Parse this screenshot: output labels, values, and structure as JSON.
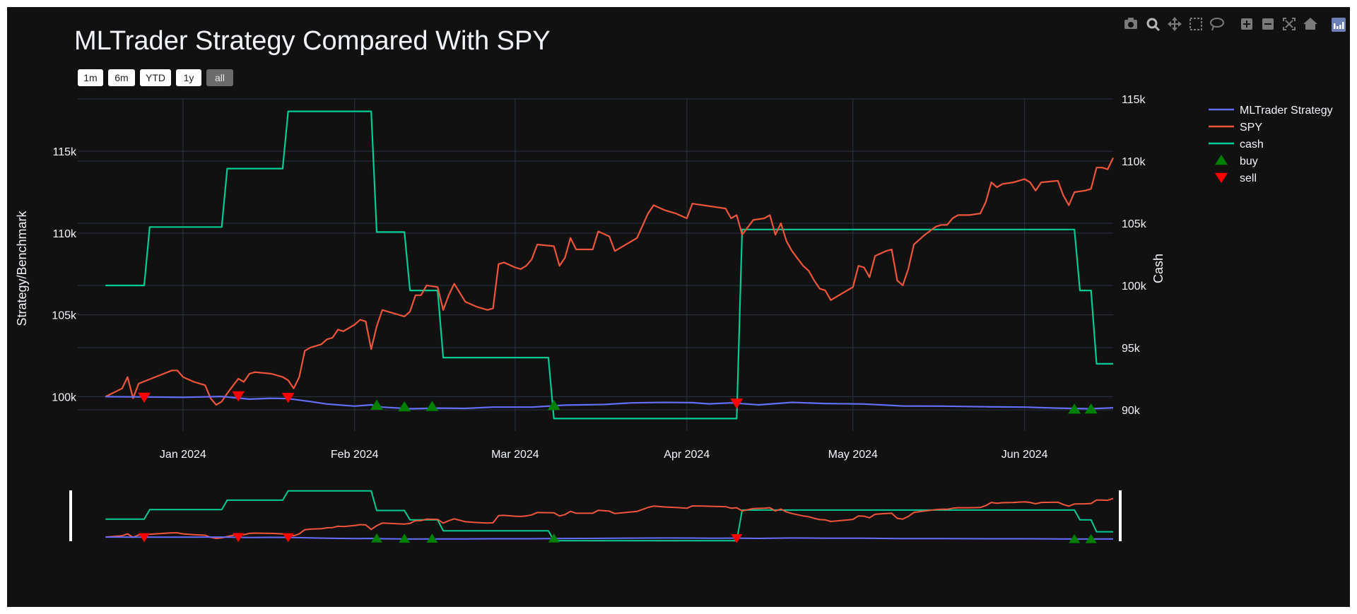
{
  "title": "MLTrader Strategy Compared With SPY",
  "range_buttons": [
    {
      "label": "1m",
      "active": false
    },
    {
      "label": "6m",
      "active": false
    },
    {
      "label": "YTD",
      "active": false
    },
    {
      "label": "1y",
      "active": false
    },
    {
      "label": "all",
      "active": true
    }
  ],
  "modebar": [
    "camera-icon",
    "zoom-icon",
    "pan-icon",
    "box-select-icon",
    "lasso-icon",
    "zoom-in-icon",
    "zoom-out-icon",
    "autoscale-icon",
    "reset-axes-icon",
    "plotly-logo-icon"
  ],
  "colors": {
    "background": "#111111",
    "grid": "#283442",
    "text": "#f2f5fa",
    "strategy": "#636efa",
    "spy": "#ef553b",
    "cash": "#00cc96",
    "buy": "#008000",
    "sell": "#ff0000"
  },
  "chart_data": {
    "type": "line",
    "title": "MLTrader Strategy Compared With SPY",
    "ylabel": "Strategy/Benchmark",
    "y2label": "Cash",
    "xlim": [
      "2023-12-13",
      "2024-06-17"
    ],
    "ylim": [
      97900,
      118200
    ],
    "y2lim": [
      88300,
      115000
    ],
    "x_ticks": [
      {
        "date": "2024-01-01",
        "label": "Jan 2024"
      },
      {
        "date": "2024-02-01",
        "label": "Feb 2024"
      },
      {
        "date": "2024-03-01",
        "label": "Mar 2024"
      },
      {
        "date": "2024-04-01",
        "label": "Apr 2024"
      },
      {
        "date": "2024-05-01",
        "label": "May 2024"
      },
      {
        "date": "2024-06-01",
        "label": "Jun 2024"
      }
    ],
    "y_ticks": [
      {
        "value": 100000,
        "label": "100k"
      },
      {
        "value": 105000,
        "label": "105k"
      },
      {
        "value": 110000,
        "label": "110k"
      },
      {
        "value": 115000,
        "label": "115k"
      }
    ],
    "y2_ticks": [
      {
        "value": 90000,
        "label": "90k"
      },
      {
        "value": 95000,
        "label": "95k"
      },
      {
        "value": 100000,
        "label": "100k"
      },
      {
        "value": 105000,
        "label": "105k"
      },
      {
        "value": 110000,
        "label": "110k"
      },
      {
        "value": 115000,
        "label": "115k"
      }
    ],
    "grid": true,
    "legend_position": "top-right",
    "series": [
      {
        "name": "MLTrader Strategy",
        "axis": "y",
        "points": [
          [
            "2023-12-18",
            100000
          ],
          [
            "2023-12-25",
            99980
          ],
          [
            "2024-01-01",
            99960
          ],
          [
            "2024-01-08",
            100010
          ],
          [
            "2024-01-13",
            99850
          ],
          [
            "2024-01-17",
            99900
          ],
          [
            "2024-01-20",
            99880
          ],
          [
            "2024-01-24",
            99700
          ],
          [
            "2024-01-27",
            99550
          ],
          [
            "2024-02-01",
            99420
          ],
          [
            "2024-02-04",
            99500
          ],
          [
            "2024-02-06",
            99360
          ],
          [
            "2024-02-11",
            99260
          ],
          [
            "2024-02-16",
            99300
          ],
          [
            "2024-02-21",
            99280
          ],
          [
            "2024-02-26",
            99360
          ],
          [
            "2024-03-04",
            99360
          ],
          [
            "2024-03-10",
            99480
          ],
          [
            "2024-03-17",
            99520
          ],
          [
            "2024-03-22",
            99620
          ],
          [
            "2024-03-28",
            99650
          ],
          [
            "2024-04-02",
            99630
          ],
          [
            "2024-04-05",
            99560
          ],
          [
            "2024-04-09",
            99620
          ],
          [
            "2024-04-14",
            99500
          ],
          [
            "2024-04-20",
            99650
          ],
          [
            "2024-04-26",
            99580
          ],
          [
            "2024-05-03",
            99550
          ],
          [
            "2024-05-10",
            99430
          ],
          [
            "2024-05-17",
            99420
          ],
          [
            "2024-05-25",
            99380
          ],
          [
            "2024-06-01",
            99360
          ],
          [
            "2024-06-07",
            99300
          ],
          [
            "2024-06-13",
            99260
          ],
          [
            "2024-06-17",
            99320
          ]
        ]
      },
      {
        "name": "SPY",
        "axis": "y",
        "points": [
          [
            "2023-12-18",
            100000
          ],
          [
            "2023-12-21",
            100500
          ],
          [
            "2023-12-22",
            101200
          ],
          [
            "2023-12-23",
            99900
          ],
          [
            "2023-12-24",
            100800
          ],
          [
            "2023-12-27",
            101200
          ],
          [
            "2023-12-30",
            101600
          ],
          [
            "2023-12-31",
            101600
          ],
          [
            "2024-01-01",
            101200
          ],
          [
            "2024-01-03",
            100900
          ],
          [
            "2024-01-05",
            100700
          ],
          [
            "2024-01-06",
            99900
          ],
          [
            "2024-01-07",
            99500
          ],
          [
            "2024-01-08",
            99700
          ],
          [
            "2024-01-09",
            100200
          ],
          [
            "2024-01-11",
            101100
          ],
          [
            "2024-01-12",
            100900
          ],
          [
            "2024-01-13",
            101400
          ],
          [
            "2024-01-14",
            101500
          ],
          [
            "2024-01-17",
            101400
          ],
          [
            "2024-01-19",
            101200
          ],
          [
            "2024-01-20",
            101000
          ],
          [
            "2024-01-21",
            100500
          ],
          [
            "2024-01-22",
            101200
          ],
          [
            "2024-01-23",
            102800
          ],
          [
            "2024-01-24",
            103000
          ],
          [
            "2024-01-26",
            103200
          ],
          [
            "2024-01-27",
            103500
          ],
          [
            "2024-01-28",
            103600
          ],
          [
            "2024-01-29",
            104100
          ],
          [
            "2024-01-30",
            104000
          ],
          [
            "2024-02-01",
            104400
          ],
          [
            "2024-02-02",
            104700
          ],
          [
            "2024-02-03",
            104600
          ],
          [
            "2024-02-04",
            102900
          ],
          [
            "2024-02-05",
            104300
          ],
          [
            "2024-02-06",
            105300
          ],
          [
            "2024-02-08",
            105100
          ],
          [
            "2024-02-10",
            104900
          ],
          [
            "2024-02-11",
            105200
          ],
          [
            "2024-02-12",
            106200
          ],
          [
            "2024-02-13",
            106200
          ],
          [
            "2024-02-14",
            106800
          ],
          [
            "2024-02-16",
            106700
          ],
          [
            "2024-02-17",
            105300
          ],
          [
            "2024-02-18",
            106200
          ],
          [
            "2024-02-19",
            106900
          ],
          [
            "2024-02-21",
            105800
          ],
          [
            "2024-02-23",
            105500
          ],
          [
            "2024-02-25",
            105300
          ],
          [
            "2024-02-26",
            105400
          ],
          [
            "2024-02-27",
            108100
          ],
          [
            "2024-02-28",
            108200
          ],
          [
            "2024-03-01",
            107900
          ],
          [
            "2024-03-02",
            107800
          ],
          [
            "2024-03-03",
            108000
          ],
          [
            "2024-03-04",
            108400
          ],
          [
            "2024-03-05",
            109300
          ],
          [
            "2024-03-08",
            109200
          ],
          [
            "2024-03-09",
            108000
          ],
          [
            "2024-03-10",
            108500
          ],
          [
            "2024-03-11",
            109700
          ],
          [
            "2024-03-12",
            109000
          ],
          [
            "2024-03-15",
            109000
          ],
          [
            "2024-03-16",
            110100
          ],
          [
            "2024-03-18",
            109800
          ],
          [
            "2024-03-19",
            108900
          ],
          [
            "2024-03-21",
            109300
          ],
          [
            "2024-03-23",
            109700
          ],
          [
            "2024-03-25",
            111200
          ],
          [
            "2024-03-26",
            111700
          ],
          [
            "2024-03-28",
            111400
          ],
          [
            "2024-03-30",
            111200
          ],
          [
            "2024-04-01",
            110900
          ],
          [
            "2024-04-02",
            111800
          ],
          [
            "2024-04-04",
            111700
          ],
          [
            "2024-04-06",
            111600
          ],
          [
            "2024-04-08",
            111500
          ],
          [
            "2024-04-09",
            110900
          ],
          [
            "2024-04-10",
            111100
          ],
          [
            "2024-04-11",
            109900
          ],
          [
            "2024-04-13",
            110800
          ],
          [
            "2024-04-15",
            110900
          ],
          [
            "2024-04-16",
            111100
          ],
          [
            "2024-04-17",
            109900
          ],
          [
            "2024-04-18",
            110600
          ],
          [
            "2024-04-19",
            109500
          ],
          [
            "2024-04-20",
            108900
          ],
          [
            "2024-04-22",
            108000
          ],
          [
            "2024-04-23",
            107700
          ],
          [
            "2024-04-24",
            107100
          ],
          [
            "2024-04-25",
            106600
          ],
          [
            "2024-04-26",
            106500
          ],
          [
            "2024-04-27",
            105900
          ],
          [
            "2024-04-29",
            106300
          ],
          [
            "2024-05-01",
            106700
          ],
          [
            "2024-05-02",
            108000
          ],
          [
            "2024-05-03",
            107900
          ],
          [
            "2024-05-04",
            107300
          ],
          [
            "2024-05-05",
            108600
          ],
          [
            "2024-05-07",
            108900
          ],
          [
            "2024-05-08",
            109000
          ],
          [
            "2024-05-09",
            107100
          ],
          [
            "2024-05-10",
            106800
          ],
          [
            "2024-05-11",
            107800
          ],
          [
            "2024-05-12",
            109300
          ],
          [
            "2024-05-14",
            109900
          ],
          [
            "2024-05-16",
            110400
          ],
          [
            "2024-05-17",
            110500
          ],
          [
            "2024-05-18",
            110500
          ],
          [
            "2024-05-19",
            110900
          ],
          [
            "2024-05-20",
            111100
          ],
          [
            "2024-05-22",
            111100
          ],
          [
            "2024-05-24",
            111200
          ],
          [
            "2024-05-25",
            111900
          ],
          [
            "2024-05-26",
            113100
          ],
          [
            "2024-05-27",
            112800
          ],
          [
            "2024-05-28",
            113000
          ],
          [
            "2024-05-30",
            113100
          ],
          [
            "2024-06-01",
            113300
          ],
          [
            "2024-06-02",
            113100
          ],
          [
            "2024-06-03",
            112600
          ],
          [
            "2024-06-04",
            113100
          ],
          [
            "2024-06-07",
            113200
          ],
          [
            "2024-06-08",
            112300
          ],
          [
            "2024-06-09",
            111700
          ],
          [
            "2024-06-10",
            112500
          ],
          [
            "2024-06-12",
            112600
          ],
          [
            "2024-06-13",
            112700
          ],
          [
            "2024-06-14",
            114000
          ],
          [
            "2024-06-15",
            114000
          ],
          [
            "2024-06-16",
            113900
          ],
          [
            "2024-06-17",
            114600
          ]
        ]
      },
      {
        "name": "cash",
        "axis": "y2",
        "points": [
          [
            "2023-12-18",
            100000
          ],
          [
            "2023-12-25",
            100000
          ],
          [
            "2023-12-26",
            104700
          ],
          [
            "2024-01-08",
            104700
          ],
          [
            "2024-01-09",
            109400
          ],
          [
            "2024-01-19",
            109400
          ],
          [
            "2024-01-20",
            114000
          ],
          [
            "2024-02-04",
            114000
          ],
          [
            "2024-02-05",
            104300
          ],
          [
            "2024-02-10",
            104300
          ],
          [
            "2024-02-11",
            99600
          ],
          [
            "2024-02-16",
            99600
          ],
          [
            "2024-02-17",
            94200
          ],
          [
            "2024-03-07",
            94200
          ],
          [
            "2024-03-08",
            89300
          ],
          [
            "2024-04-10",
            89300
          ],
          [
            "2024-04-11",
            104500
          ],
          [
            "2024-06-10",
            104500
          ],
          [
            "2024-06-11",
            99600
          ],
          [
            "2024-06-13",
            99600
          ],
          [
            "2024-06-14",
            93700
          ],
          [
            "2024-06-17",
            93700
          ]
        ]
      }
    ],
    "markers": [
      {
        "name": "buy",
        "symbol": "triangle-up",
        "points": [
          [
            "2024-02-05",
            99470
          ],
          [
            "2024-02-10",
            99370
          ],
          [
            "2024-02-15",
            99390
          ],
          [
            "2024-03-08",
            99450
          ],
          [
            "2024-06-10",
            99230
          ],
          [
            "2024-06-13",
            99240
          ]
        ]
      },
      {
        "name": "sell",
        "symbol": "triangle-down",
        "points": [
          [
            "2023-12-25",
            99970
          ],
          [
            "2024-01-11",
            100060
          ],
          [
            "2024-01-20",
            99960
          ],
          [
            "2024-04-10",
            99610
          ]
        ]
      }
    ]
  }
}
